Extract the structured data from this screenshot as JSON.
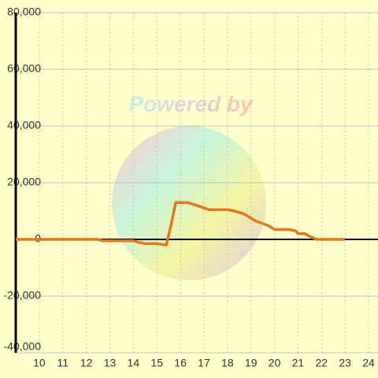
{
  "chart_data": {
    "type": "line",
    "watermark": "Powered by",
    "x": [
      9,
      12.5,
      12.7,
      14,
      14.2,
      14.5,
      15,
      15.4,
      15.6,
      15.8,
      16.3,
      16.7,
      17.2,
      18,
      18.3,
      18.7,
      19.2,
      19.7,
      20,
      20.6,
      20.9,
      21,
      21.3,
      21.5,
      21.8,
      23
    ],
    "series": [
      {
        "color": "#e07820",
        "values": [
          0,
          0,
          -500,
          -500,
          -1000,
          -1500,
          -1500,
          -2000,
          5000,
          13000,
          13000,
          12000,
          10500,
          10500,
          10000,
          9000,
          6500,
          5000,
          3500,
          3500,
          3000,
          2000,
          2000,
          1000,
          0,
          0
        ]
      }
    ],
    "xlim": [
      9,
      24.4
    ],
    "xticks": [
      10,
      11,
      12,
      13,
      14,
      15,
      16,
      17,
      18,
      19,
      20,
      21,
      22,
      23,
      24
    ],
    "ylim": [
      -40000,
      80000
    ],
    "yticks": [
      {
        "value": -40000,
        "label": "-40,000"
      },
      {
        "value": -20000,
        "label": "-20,000"
      },
      0,
      {
        "value": 20000,
        "label": "20,000"
      },
      {
        "value": 40000,
        "label": "40,000"
      },
      {
        "value": 60000,
        "label": "60,000"
      },
      {
        "value": 80000,
        "label": "80,000"
      }
    ],
    "grid": true
  }
}
